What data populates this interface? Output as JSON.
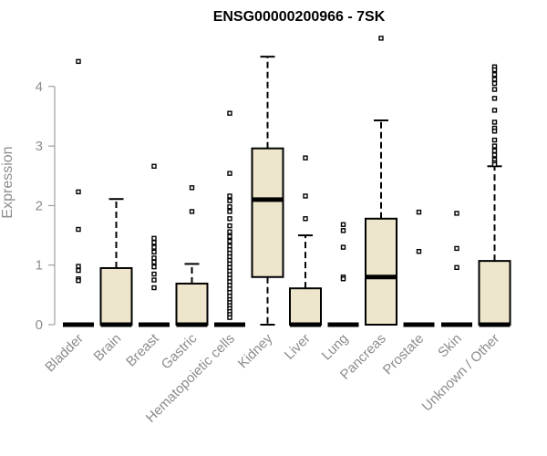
{
  "chart_data": {
    "type": "boxplot",
    "title": "ENSG00000200966 - 7SK",
    "xlabel": "",
    "ylabel": "Expression",
    "ylim": [
      0,
      4.8
    ],
    "yticks": [
      0,
      1,
      2,
      3,
      4
    ],
    "grid": false,
    "legend": "none",
    "box_fill": "#ede6cc",
    "outlier_color": "#000000",
    "categories": [
      "Bladder",
      "Brain",
      "Breast",
      "Gastric",
      "Hematopoietic cells",
      "Kidney",
      "Liver",
      "Lung",
      "Pancreas",
      "Prostate",
      "Skin",
      "Unknown / Other"
    ],
    "boxes": [
      {
        "whisker_low": 0,
        "q1": 0,
        "median": 0,
        "q3": 0,
        "whisker_high": 0,
        "outliers": [
          4.42,
          2.23,
          1.6,
          0.98,
          0.91,
          0.77,
          0.74
        ]
      },
      {
        "whisker_low": 0,
        "q1": 0,
        "median": 0,
        "q3": 0.95,
        "whisker_high": 2.11,
        "outliers": []
      },
      {
        "whisker_low": 0,
        "q1": 0,
        "median": 0,
        "q3": 0,
        "whisker_high": 0,
        "outliers": [
          2.66,
          1.45,
          1.38,
          1.3,
          1.22,
          1.12,
          1.05,
          0.97,
          0.85,
          0.75,
          0.62
        ]
      },
      {
        "whisker_low": 0,
        "q1": 0,
        "median": 0,
        "q3": 0.69,
        "whisker_high": 1.02,
        "outliers": [
          2.3,
          1.9
        ]
      },
      {
        "whisker_low": 0,
        "q1": 0,
        "median": 0,
        "q3": 0,
        "whisker_high": 0,
        "outliers": [
          3.55,
          2.54,
          2.16,
          2.08,
          1.98,
          1.9,
          1.78,
          1.66,
          1.56,
          1.48,
          1.4,
          1.32,
          1.26,
          1.2,
          1.14,
          1.08,
          1.02,
          0.96,
          0.9,
          0.84,
          0.78,
          0.72,
          0.66,
          0.6,
          0.54,
          0.48,
          0.42,
          0.37,
          0.32,
          0.27,
          0.22,
          0.17,
          0.12
        ]
      },
      {
        "whisker_low": 0,
        "q1": 0.8,
        "median": 2.1,
        "q3": 2.96,
        "whisker_high": 4.5,
        "outliers": []
      },
      {
        "whisker_low": 0,
        "q1": 0,
        "median": 0,
        "q3": 0.61,
        "whisker_high": 1.5,
        "outliers": [
          2.8,
          2.16,
          1.78
        ]
      },
      {
        "whisker_low": 0,
        "q1": 0,
        "median": 0,
        "q3": 0,
        "whisker_high": 0,
        "outliers": [
          1.68,
          1.58,
          1.3,
          0.8,
          0.77
        ]
      },
      {
        "whisker_low": 0,
        "q1": 0,
        "median": 0.8,
        "q3": 1.78,
        "whisker_high": 3.43,
        "outliers": [
          4.81
        ]
      },
      {
        "whisker_low": 0,
        "q1": 0,
        "median": 0,
        "q3": 0,
        "whisker_high": 0,
        "outliers": [
          1.89,
          1.23
        ]
      },
      {
        "whisker_low": 0,
        "q1": 0,
        "median": 0,
        "q3": 0,
        "whisker_high": 0,
        "outliers": [
          1.87,
          1.28,
          0.96
        ]
      },
      {
        "whisker_low": 0,
        "q1": 0,
        "median": 0,
        "q3": 1.07,
        "whisker_high": 2.66,
        "outliers": [
          4.33,
          4.28,
          4.2,
          4.12,
          4.05,
          3.95,
          3.8,
          3.6,
          3.4,
          3.3,
          3.25,
          3.1,
          3.0,
          2.92,
          2.85,
          2.77,
          2.72,
          2.69
        ]
      }
    ]
  }
}
